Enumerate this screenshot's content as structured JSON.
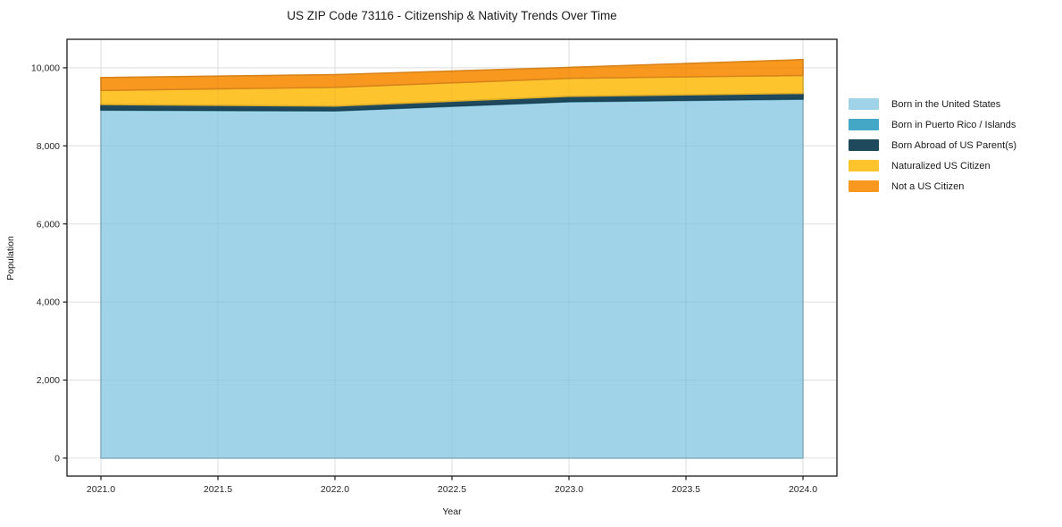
{
  "figure": {
    "background": "#ffffff"
  },
  "chart_data": {
    "type": "area",
    "stacked": true,
    "title": "US ZIP Code 73116 - Citizenship & Nativity Trends Over Time",
    "xlabel": "Year",
    "ylabel": "Population",
    "x": [
      2021,
      2022,
      2023,
      2024
    ],
    "series": [
      {
        "name": "Born in the United States",
        "color": "#a0d2e8",
        "values": [
          8915,
          8895,
          9130,
          9195
        ]
      },
      {
        "name": "Born in Puerto Rico / Islands",
        "color": "#45a7c6",
        "values": [
          10,
          10,
          10,
          10
        ]
      },
      {
        "name": "Born Abroad of US Parent(s)",
        "color": "#1f4a5e",
        "values": [
          135,
          115,
          130,
          140
        ]
      },
      {
        "name": "Naturalized US Citizen",
        "color": "#fdc42e",
        "values": [
          360,
          480,
          460,
          460
        ]
      },
      {
        "name": "Not a US Citizen",
        "color": "#f8981f",
        "values": [
          330,
          325,
          280,
          405
        ]
      }
    ],
    "totals": [
      9750,
      9825,
      10010,
      10210
    ],
    "x_ticks": [
      2021.0,
      2021.5,
      2022.0,
      2022.5,
      2023.0,
      2023.5,
      2024.0
    ],
    "y_ticks": [
      0,
      2000,
      4000,
      6000,
      8000,
      10000
    ],
    "xlim": [
      2020.855,
      2024.145
    ],
    "ylim": [
      -460,
      10730
    ],
    "grid": true,
    "grid_color": "#e7e7e7",
    "spine_color": "#1a1a1a",
    "legend_position": "right-outside"
  }
}
